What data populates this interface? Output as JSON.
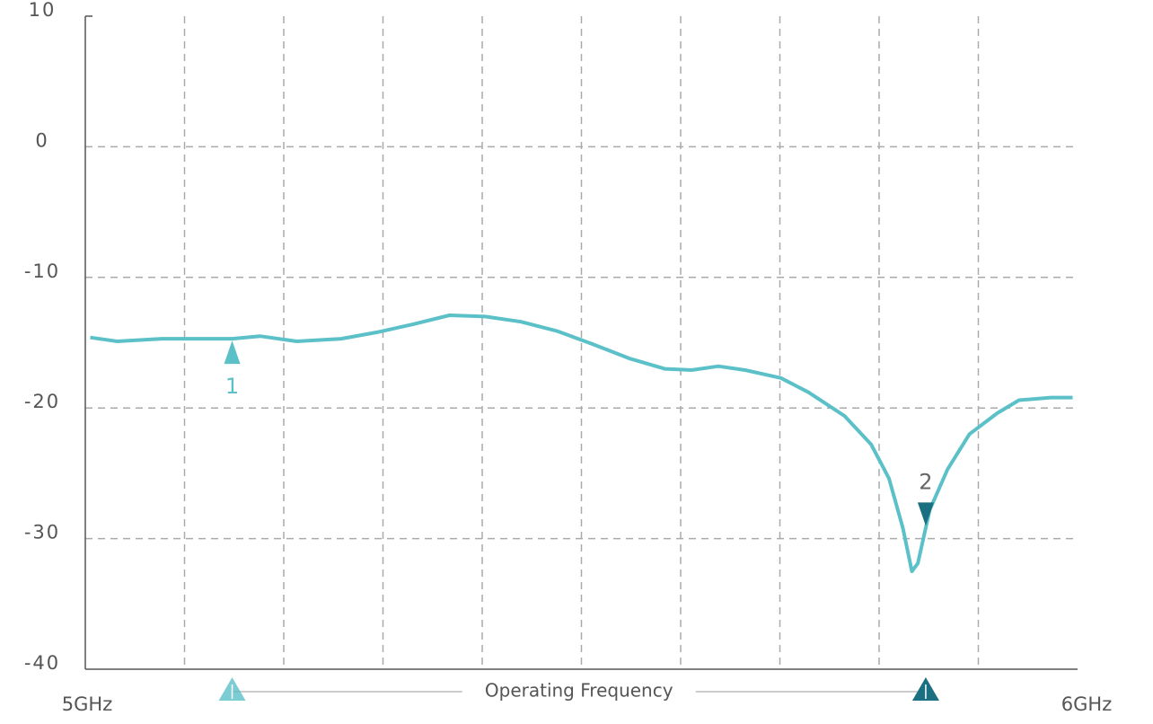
{
  "chart_data": {
    "type": "line",
    "color": "#5bc0c8",
    "x": [
      5.005,
      5.032,
      5.077,
      5.148,
      5.176,
      5.213,
      5.258,
      5.294,
      5.33,
      5.367,
      5.403,
      5.439,
      5.475,
      5.511,
      5.548,
      5.584,
      5.611,
      5.638,
      5.665,
      5.701,
      5.729,
      5.765,
      5.792,
      5.81,
      5.824,
      5.833,
      5.839,
      5.851,
      5.869,
      5.891,
      5.919,
      5.941,
      5.973,
      5.995
    ],
    "values": [
      -14.6,
      -14.9,
      -14.7,
      -14.7,
      -14.5,
      -14.9,
      -14.7,
      -14.2,
      -13.6,
      -12.9,
      -13.0,
      -13.4,
      -14.1,
      -15.1,
      -16.2,
      -17.0,
      -17.1,
      -16.8,
      -17.1,
      -17.7,
      -18.8,
      -20.6,
      -22.8,
      -25.4,
      -29.2,
      -32.5,
      -31.9,
      -27.8,
      -24.7,
      -22.0,
      -20.4,
      -19.4,
      -19.2,
      -19.2
    ],
    "xlim": [
      5,
      6
    ],
    "xticks": [
      {
        "value": 5,
        "label": "5GHz"
      },
      {
        "value": 5.1,
        "label": null
      },
      {
        "value": 5.2,
        "label": null
      },
      {
        "value": 5.3,
        "label": null
      },
      {
        "value": 5.4,
        "label": null
      },
      {
        "value": 5.5,
        "label": null
      },
      {
        "value": 5.6,
        "label": null
      },
      {
        "value": 5.7,
        "label": null
      },
      {
        "value": 5.8,
        "label": null
      },
      {
        "value": 5.9,
        "label": null
      },
      {
        "value": 6,
        "label": "6GHz"
      }
    ],
    "ylim": [
      -40,
      10
    ],
    "yticks": [
      -40,
      -30,
      -20,
      -10,
      0,
      10
    ],
    "grid": true,
    "markers": [
      {
        "label": "1",
        "x": 5.148,
        "y": -14.7,
        "color": "#5bc0c8",
        "direction": "up"
      },
      {
        "label": "2",
        "x": 5.847,
        "y": -28.2,
        "color": "#1a6f80",
        "direction": "down"
      }
    ],
    "operating_band": {
      "label": "Operating Frequency",
      "range": [
        5.148,
        5.847
      ]
    }
  }
}
